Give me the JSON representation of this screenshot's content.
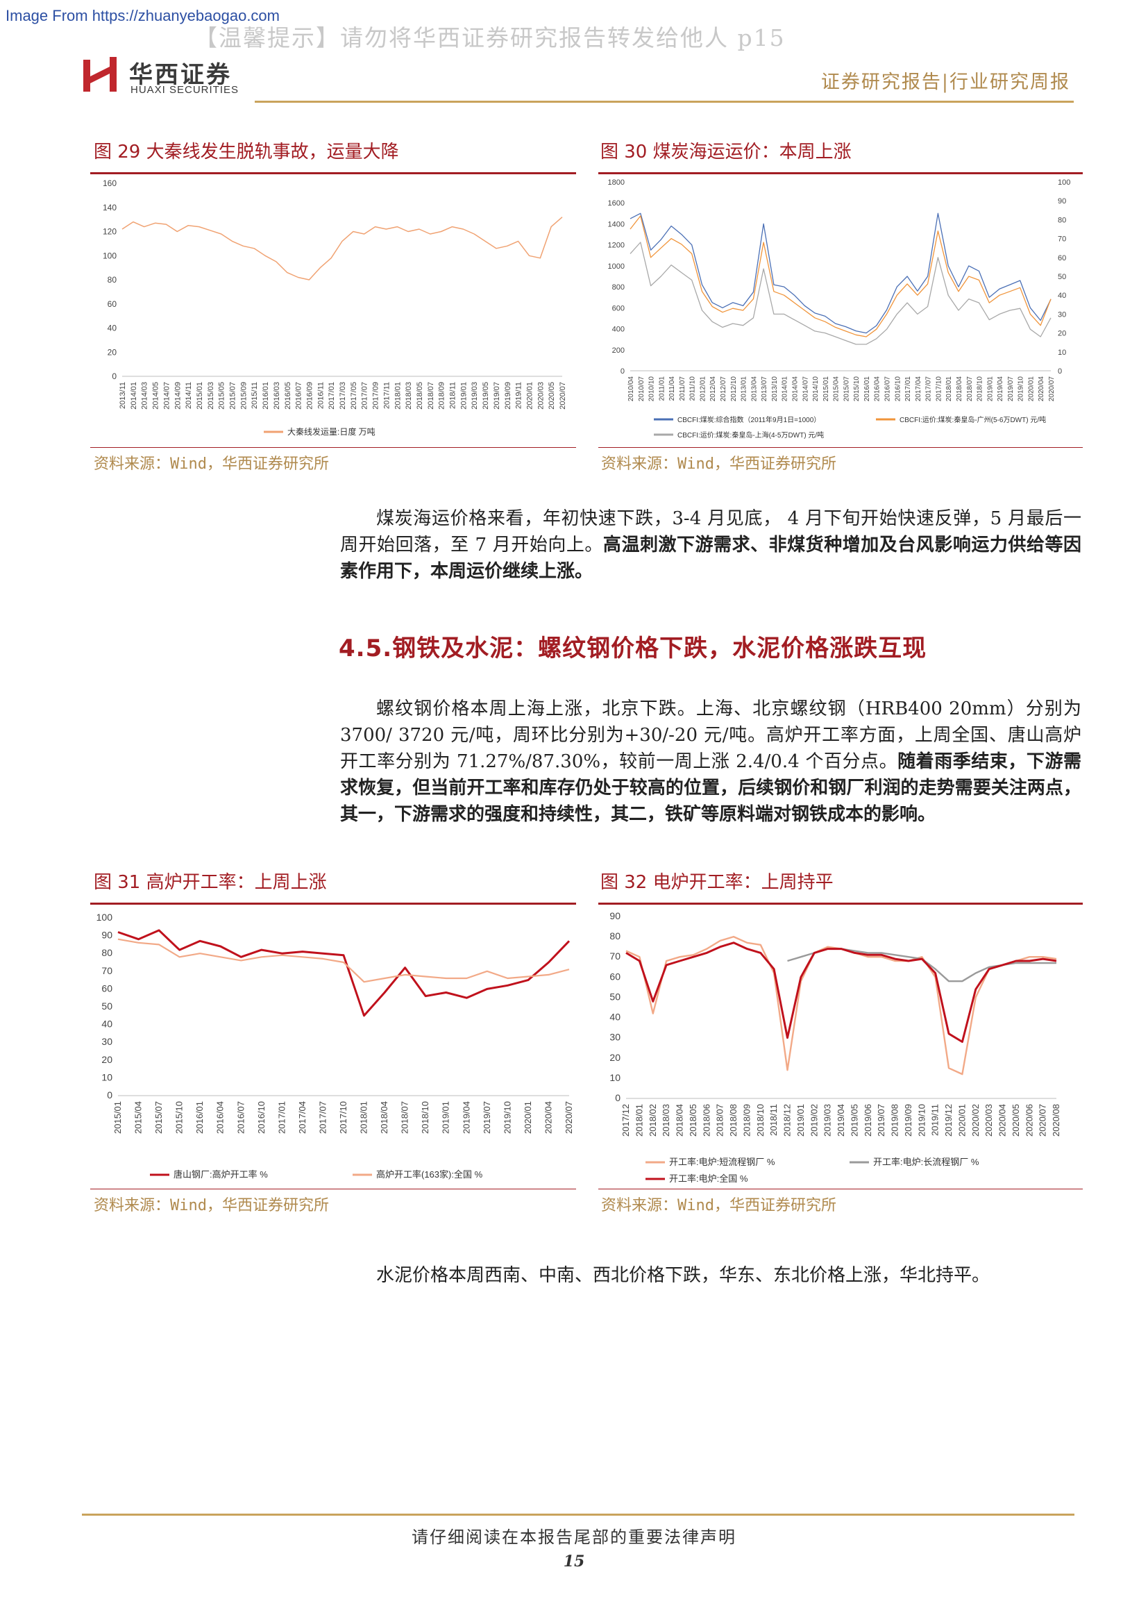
{
  "source_banner": "Image From https://zhuanyebaogao.com",
  "watermark": "【温馨提示】请勿将华西证券研究报告转发给他人 p15",
  "logo": {
    "cn": "华西证券",
    "en": "HUAXI SECURITIES",
    "color": "#c0272d"
  },
  "header": {
    "right": "证券研究报告|行业研究周报"
  },
  "colors": {
    "accent": "#a21d23",
    "gold": "#c9a35c",
    "source": "#b08a4e"
  },
  "figures": {
    "f29": {
      "title": "图 29 大秦线发生脱轨事故，运量大降",
      "source": "资料来源：Wind，华西证券研究所"
    },
    "f30": {
      "title": "图 30 煤炭海运运价：本周上涨",
      "source": "资料来源：Wind，华西证券研究所"
    },
    "f31": {
      "title": "图 31 高炉开工率：上周上涨",
      "source": "资料来源：Wind，华西证券研究所"
    },
    "f32": {
      "title": "图 32 电炉开工率：上周持平",
      "source": "资料来源：Wind，华西证券研究所"
    }
  },
  "paragraphs": {
    "p1_normal": "煤炭海运价格来看，年初快速下跌，3-4 月见底， 4 月下旬开始快速反弹，5 月最后一周开始回落，至 7 月开始向上。",
    "p1_bold": "高温刺激下游需求、非煤货种增加及台风影响运力供给等因素作用下，本周运价继续上涨。",
    "section_title": "4.5.钢铁及水泥：螺纹钢价格下跌，水泥价格涨跌互现",
    "p2_normal": "螺纹钢价格本周上海上涨，北京下跌。上海、北京螺纹钢（HRB400 20mm）分别为 3700/ 3720 元/吨，周环比分别为+30/-20 元/吨。高炉开工率方面，上周全国、唐山高炉开工率分别为 71.27%/87.30%，较前一周上涨 2.4/0.4 个百分点。",
    "p2_bold": "随着雨季结束，下游需求恢复，但当前开工率和库存仍处于较高的位置，后续钢价和钢厂利润的走势需要关注两点，其一，下游需求的强度和持续性，其二，铁矿等原料端对钢铁成本的影响。",
    "p3": "水泥价格本周西南、中南、西北价格下跌，华东、东北价格上涨，华北持平。"
  },
  "footer": {
    "notice": "请仔细阅读在本报告尾部的重要法律声明",
    "page": "15"
  },
  "chart_data": [
    {
      "id": "f29",
      "type": "line",
      "categories": [
        "2013/11",
        "2014/01",
        "2014/03",
        "2014/05",
        "2014/07",
        "2014/09",
        "2014/11",
        "2015/01",
        "2015/03",
        "2015/05",
        "2015/07",
        "2015/09",
        "2015/11",
        "2016/01",
        "2016/03",
        "2016/05",
        "2016/07",
        "2016/09",
        "2016/11",
        "2017/01",
        "2017/03",
        "2017/05",
        "2017/07",
        "2017/09",
        "2017/11",
        "2018/01",
        "2018/03",
        "2018/05",
        "2018/07",
        "2018/09",
        "2018/11",
        "2019/01",
        "2019/03",
        "2019/05",
        "2019/07",
        "2019/09",
        "2019/11",
        "2020/01",
        "2020/03",
        "2020/05",
        "2020/07"
      ],
      "series": [
        {
          "name": "大秦线发运量:日度 万吨",
          "color": "#f0a272",
          "values": [
            122,
            128,
            124,
            127,
            126,
            120,
            125,
            124,
            121,
            118,
            112,
            108,
            106,
            100,
            95,
            86,
            82,
            80,
            90,
            98,
            112,
            120,
            118,
            124,
            122,
            124,
            120,
            122,
            118,
            120,
            124,
            122,
            118,
            112,
            106,
            108,
            112,
            100,
            98,
            124,
            132
          ]
        }
      ],
      "ylim": [
        0,
        160
      ],
      "yticks": [
        0,
        20,
        40,
        60,
        80,
        100,
        120,
        140,
        160
      ],
      "legend": "bottom"
    },
    {
      "id": "f30",
      "type": "line",
      "categories": [
        "2010/04",
        "2010/07",
        "2010/10",
        "2011/01",
        "2011/04",
        "2011/07",
        "2011/10",
        "2012/01",
        "2012/04",
        "2012/07",
        "2012/10",
        "2013/01",
        "2013/04",
        "2013/07",
        "2013/10",
        "2014/01",
        "2014/04",
        "2014/07",
        "2014/10",
        "2015/01",
        "2015/04",
        "2015/07",
        "2015/10",
        "2016/01",
        "2016/04",
        "2016/07",
        "2016/10",
        "2017/01",
        "2017/04",
        "2017/07",
        "2017/10",
        "2018/01",
        "2018/04",
        "2018/07",
        "2018/10",
        "2019/01",
        "2019/04",
        "2019/07",
        "2019/10",
        "2020/01",
        "2020/04",
        "2020/07"
      ],
      "series": [
        {
          "name": "CBCFI:煤炭:综合指数（2011年9月1日=1000）",
          "color": "#4a6fb5",
          "axis": "left",
          "values": [
            1450,
            1500,
            1150,
            1250,
            1380,
            1300,
            1200,
            820,
            650,
            600,
            650,
            620,
            750,
            1400,
            820,
            800,
            720,
            620,
            550,
            520,
            450,
            420,
            380,
            360,
            430,
            580,
            800,
            900,
            760,
            900,
            1500,
            1000,
            800,
            1000,
            950,
            700,
            780,
            820,
            860,
            600,
            480,
            680
          ]
        },
        {
          "name": "CBCFI:运价:煤炭:秦皇岛-广州(5-6万DWT) 元/吨",
          "color": "#f0943a",
          "axis": "right",
          "values": [
            75,
            82,
            60,
            65,
            70,
            67,
            62,
            42,
            34,
            31,
            33,
            32,
            38,
            68,
            42,
            40,
            36,
            32,
            28,
            26,
            23,
            21,
            19,
            18,
            22,
            30,
            40,
            46,
            40,
            46,
            74,
            52,
            42,
            50,
            48,
            36,
            40,
            42,
            44,
            30,
            24,
            38
          ]
        },
        {
          "name": "CBCFI:运价:煤炭:秦皇岛-上海(4-5万DWT) 元/吨",
          "color": "#a8a8a8",
          "axis": "right",
          "values": [
            62,
            68,
            45,
            50,
            56,
            52,
            48,
            32,
            26,
            23,
            25,
            24,
            28,
            54,
            30,
            30,
            27,
            24,
            21,
            20,
            18,
            16,
            14,
            14,
            17,
            22,
            30,
            36,
            30,
            34,
            60,
            40,
            32,
            38,
            36,
            27,
            30,
            32,
            33,
            22,
            18,
            28
          ]
        }
      ],
      "ylim_left": [
        0,
        1800
      ],
      "yticks_left": [
        0,
        200,
        400,
        600,
        800,
        1000,
        1200,
        1400,
        1600,
        1800
      ],
      "ylim_right": [
        0,
        100
      ],
      "yticks_right": [
        0,
        10,
        20,
        30,
        40,
        50,
        60,
        70,
        80,
        90,
        100
      ],
      "legend": "bottom"
    },
    {
      "id": "f31",
      "type": "line",
      "categories": [
        "2015/01",
        "2015/04",
        "2015/07",
        "2015/10",
        "2016/01",
        "2016/04",
        "2016/07",
        "2016/10",
        "2017/01",
        "2017/04",
        "2017/07",
        "2017/10",
        "2018/01",
        "2018/04",
        "2018/07",
        "2018/10",
        "2019/01",
        "2019/04",
        "2019/07",
        "2019/10",
        "2020/01",
        "2020/04",
        "2020/07"
      ],
      "series": [
        {
          "name": "唐山钢厂:高炉开工率 %",
          "color": "#c0111c",
          "values": [
            92,
            88,
            93,
            82,
            87,
            84,
            78,
            82,
            80,
            81,
            80,
            79,
            45,
            58,
            72,
            56,
            58,
            55,
            60,
            62,
            65,
            75,
            87
          ]
        },
        {
          "name": "高炉开工率(163家):全国 %",
          "color": "#f2a987",
          "values": [
            88,
            86,
            85,
            78,
            80,
            78,
            76,
            78,
            79,
            78,
            77,
            75,
            64,
            66,
            68,
            67,
            66,
            66,
            70,
            66,
            67,
            68,
            71
          ]
        }
      ],
      "ylim": [
        0,
        100
      ],
      "yticks": [
        0,
        10,
        20,
        30,
        40,
        50,
        60,
        70,
        80,
        90,
        100
      ],
      "legend": "bottom"
    },
    {
      "id": "f32",
      "type": "line",
      "categories": [
        "2017/12",
        "2018/01",
        "2018/02",
        "2018/03",
        "2018/04",
        "2018/05",
        "2018/06",
        "2018/07",
        "2018/08",
        "2018/09",
        "2018/10",
        "2018/11",
        "2018/12",
        "2019/01",
        "2019/02",
        "2019/03",
        "2019/04",
        "2019/05",
        "2019/06",
        "2019/07",
        "2019/08",
        "2019/09",
        "2019/10",
        "2019/11",
        "2019/12",
        "2020/01",
        "2020/02",
        "2020/03",
        "2020/04",
        "2020/05",
        "2020/06",
        "2020/07",
        "2020/08"
      ],
      "series": [
        {
          "name": "开工率:电炉:短流程钢厂 %",
          "color": "#f2a987",
          "values": [
            73,
            70,
            42,
            68,
            70,
            71,
            74,
            78,
            80,
            77,
            76,
            62,
            14,
            58,
            72,
            75,
            74,
            72,
            70,
            70,
            68,
            68,
            70,
            60,
            15,
            12,
            50,
            64,
            66,
            68,
            70,
            70,
            69
          ]
        },
        {
          "name": "开工率:电炉:长流程钢厂 %",
          "color": "#9a9a9a",
          "values": [
            null,
            null,
            null,
            null,
            null,
            null,
            null,
            null,
            null,
            null,
            null,
            null,
            68,
            70,
            72,
            74,
            74,
            73,
            72,
            72,
            71,
            70,
            69,
            64,
            58,
            58,
            62,
            65,
            66,
            67,
            67,
            67,
            67
          ]
        },
        {
          "name": "开工率:电炉:全国 %",
          "color": "#c0111c",
          "values": [
            72,
            68,
            48,
            66,
            68,
            70,
            72,
            75,
            77,
            74,
            72,
            64,
            30,
            60,
            72,
            74,
            74,
            72,
            71,
            71,
            69,
            68,
            69,
            62,
            32,
            28,
            54,
            64,
            66,
            68,
            68,
            69,
            68
          ]
        }
      ],
      "ylim": [
        0,
        90
      ],
      "yticks": [
        0,
        10,
        20,
        30,
        40,
        50,
        60,
        70,
        80,
        90
      ],
      "legend": "bottom"
    }
  ]
}
